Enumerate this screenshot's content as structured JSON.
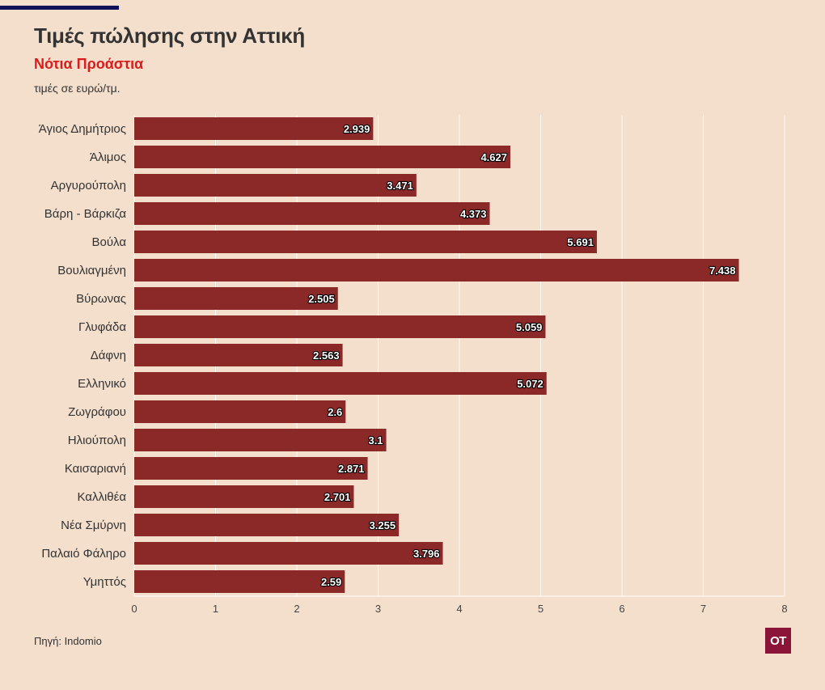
{
  "header": {
    "title": "Τιμές πώλησης στην Αττική",
    "subtitle": "Νότια Προάστια",
    "units": "τιμές σε ευρώ/τμ."
  },
  "footer": {
    "source": "Πηγή: Indomio",
    "logo_text": "OT"
  },
  "colors": {
    "bar": "#8b2828",
    "background": "#f4dfcd",
    "grid": "#ffffff",
    "subtitle": "#d91c1c",
    "logo": "#8b1538"
  },
  "chart_data": {
    "type": "bar",
    "orientation": "horizontal",
    "title": "Τιμές πώλησης στην Αττική",
    "subtitle": "Νότια Προάστια",
    "xlabel": "",
    "ylabel": "τιμές σε ευρώ/τμ.",
    "xlim": [
      0,
      8
    ],
    "xticks": [
      "0",
      "1",
      "2",
      "3",
      "4",
      "5",
      "6",
      "7",
      "8"
    ],
    "grid": true,
    "categories": [
      "Άγιος Δημήτριος",
      "Άλιμος",
      "Αργυρούπολη",
      "Βάρη - Βάρκιζα",
      "Βούλα",
      "Βουλιαγμένη",
      "Βύρωνας",
      "Γλυφάδα",
      "Δάφνη",
      "Ελληνικό",
      "Ζωγράφου",
      "Ηλιούπολη",
      "Καισαριανή",
      "Καλλιθέα",
      "Νέα Σμύρνη",
      "Παλαιό Φάληρο",
      "Υμηττός"
    ],
    "values": [
      2.939,
      4.627,
      3.471,
      4.373,
      5.691,
      7.438,
      2.505,
      5.059,
      2.563,
      5.072,
      2.6,
      3.1,
      2.871,
      2.701,
      3.255,
      3.796,
      2.59
    ],
    "labels": [
      "2.939",
      "4.627",
      "3.471",
      "4.373",
      "5.691",
      "7.438",
      "2.505",
      "5.059",
      "2.563",
      "5.072",
      "2.6",
      "3.1",
      "2.871",
      "2.701",
      "3.255",
      "3.796",
      "2.59"
    ]
  }
}
